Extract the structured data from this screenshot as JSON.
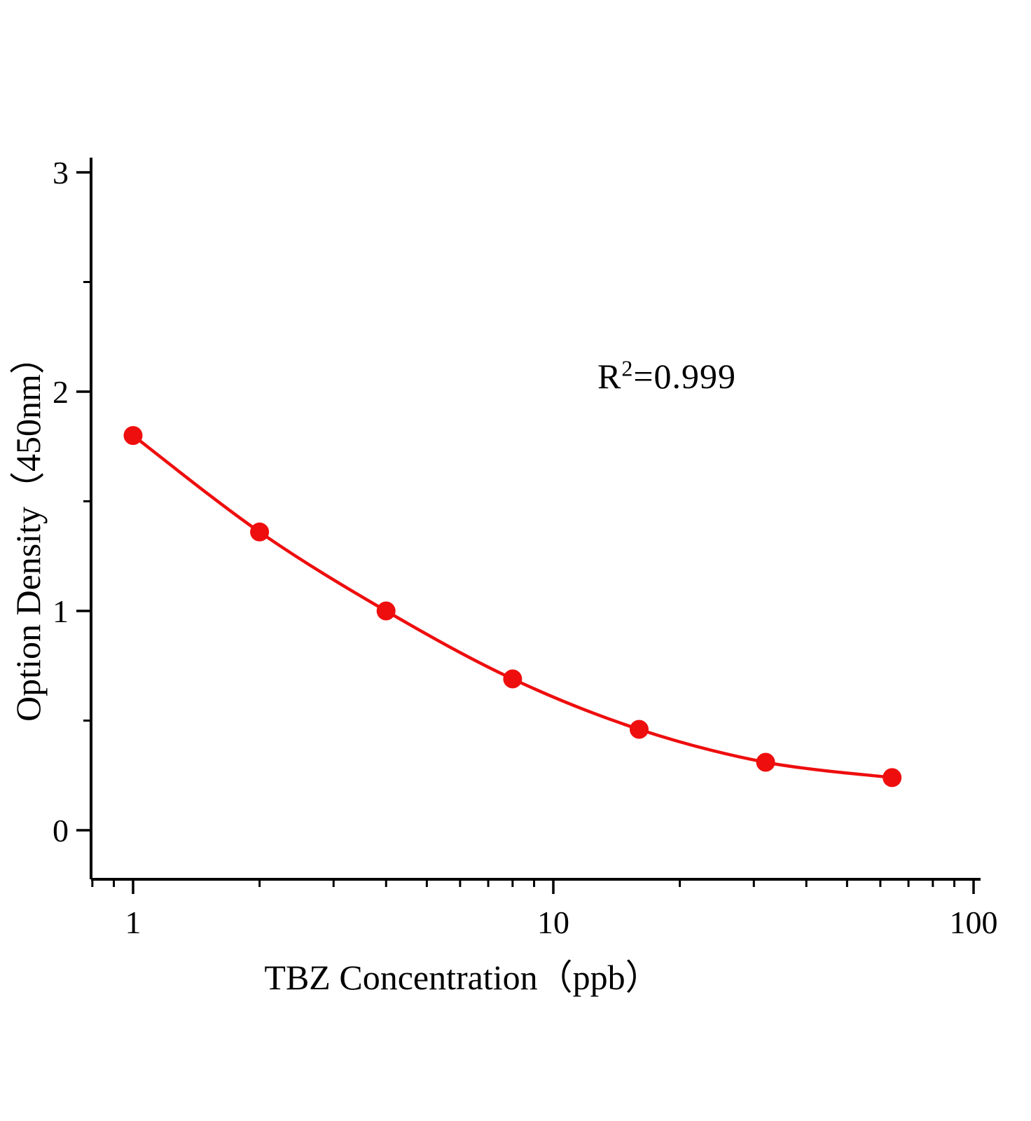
{
  "chart_data": {
    "type": "line",
    "title": "",
    "xlabel": "TBZ Concentration（ppb）",
    "ylabel": "Option Density（450nm）",
    "x_scale": "log",
    "x": [
      1,
      2,
      4,
      8,
      16,
      32,
      64
    ],
    "y": [
      1.8,
      1.36,
      1.0,
      0.69,
      0.46,
      0.31,
      0.24
    ],
    "x_major_ticks": [
      1,
      10,
      100
    ],
    "x_major_tick_labels": [
      "1",
      "10",
      "100"
    ],
    "x_minor_ticks": [
      0.8,
      0.9,
      2,
      3,
      4,
      5,
      6,
      7,
      8,
      9,
      20,
      30,
      40,
      50,
      60,
      70,
      80,
      90
    ],
    "y_major_ticks": [
      0,
      1,
      2,
      3
    ],
    "y_major_tick_labels": [
      "0",
      "1",
      "2",
      "3"
    ],
    "y_minor_ticks": [
      0.5,
      1.5,
      2.5
    ],
    "xlim": [
      0.79,
      104
    ],
    "ylim": [
      -0.22,
      3.07
    ],
    "grid": false,
    "legend": "none",
    "annotation": {
      "base": "R",
      "sup": "2",
      "rest": "=0.999"
    },
    "line_color": "#ee0e0e",
    "marker_color": "#ee0e0e",
    "axis_color": "#000000"
  }
}
